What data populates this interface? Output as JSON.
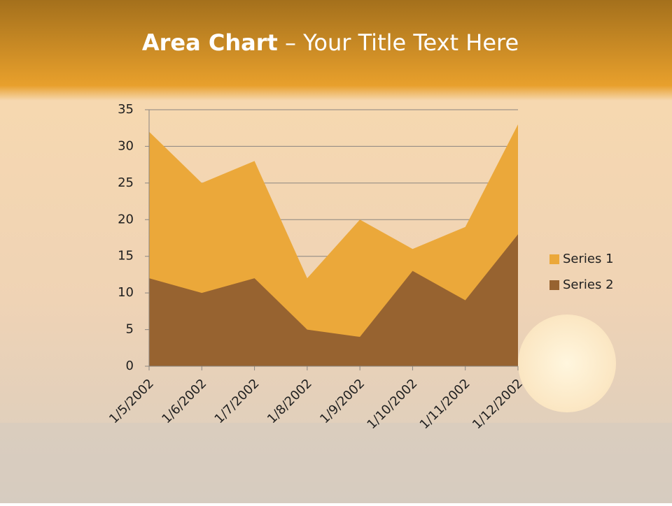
{
  "chart_data": {
    "type": "area",
    "title_parts": [
      "Area Chart",
      "– Your Title Text Here"
    ],
    "categories": [
      "1/5/2002",
      "1/6/2002",
      "1/7/2002",
      "1/8/2002",
      "1/9/2002",
      "1/10/2002",
      "1/11/2002",
      "1/12/2002"
    ],
    "series": [
      {
        "name": "Series 1",
        "color": "#eba83a",
        "values": [
          32,
          25,
          28,
          12,
          20,
          16,
          19,
          33
        ]
      },
      {
        "name": "Series 2",
        "color": "#976330",
        "values": [
          12,
          10,
          12,
          5,
          4,
          13,
          9,
          18
        ]
      }
    ],
    "ylim": [
      0,
      35
    ],
    "yticks": [
      0,
      5,
      10,
      15,
      20,
      25,
      30,
      35
    ],
    "grid": true,
    "legend": "right"
  }
}
